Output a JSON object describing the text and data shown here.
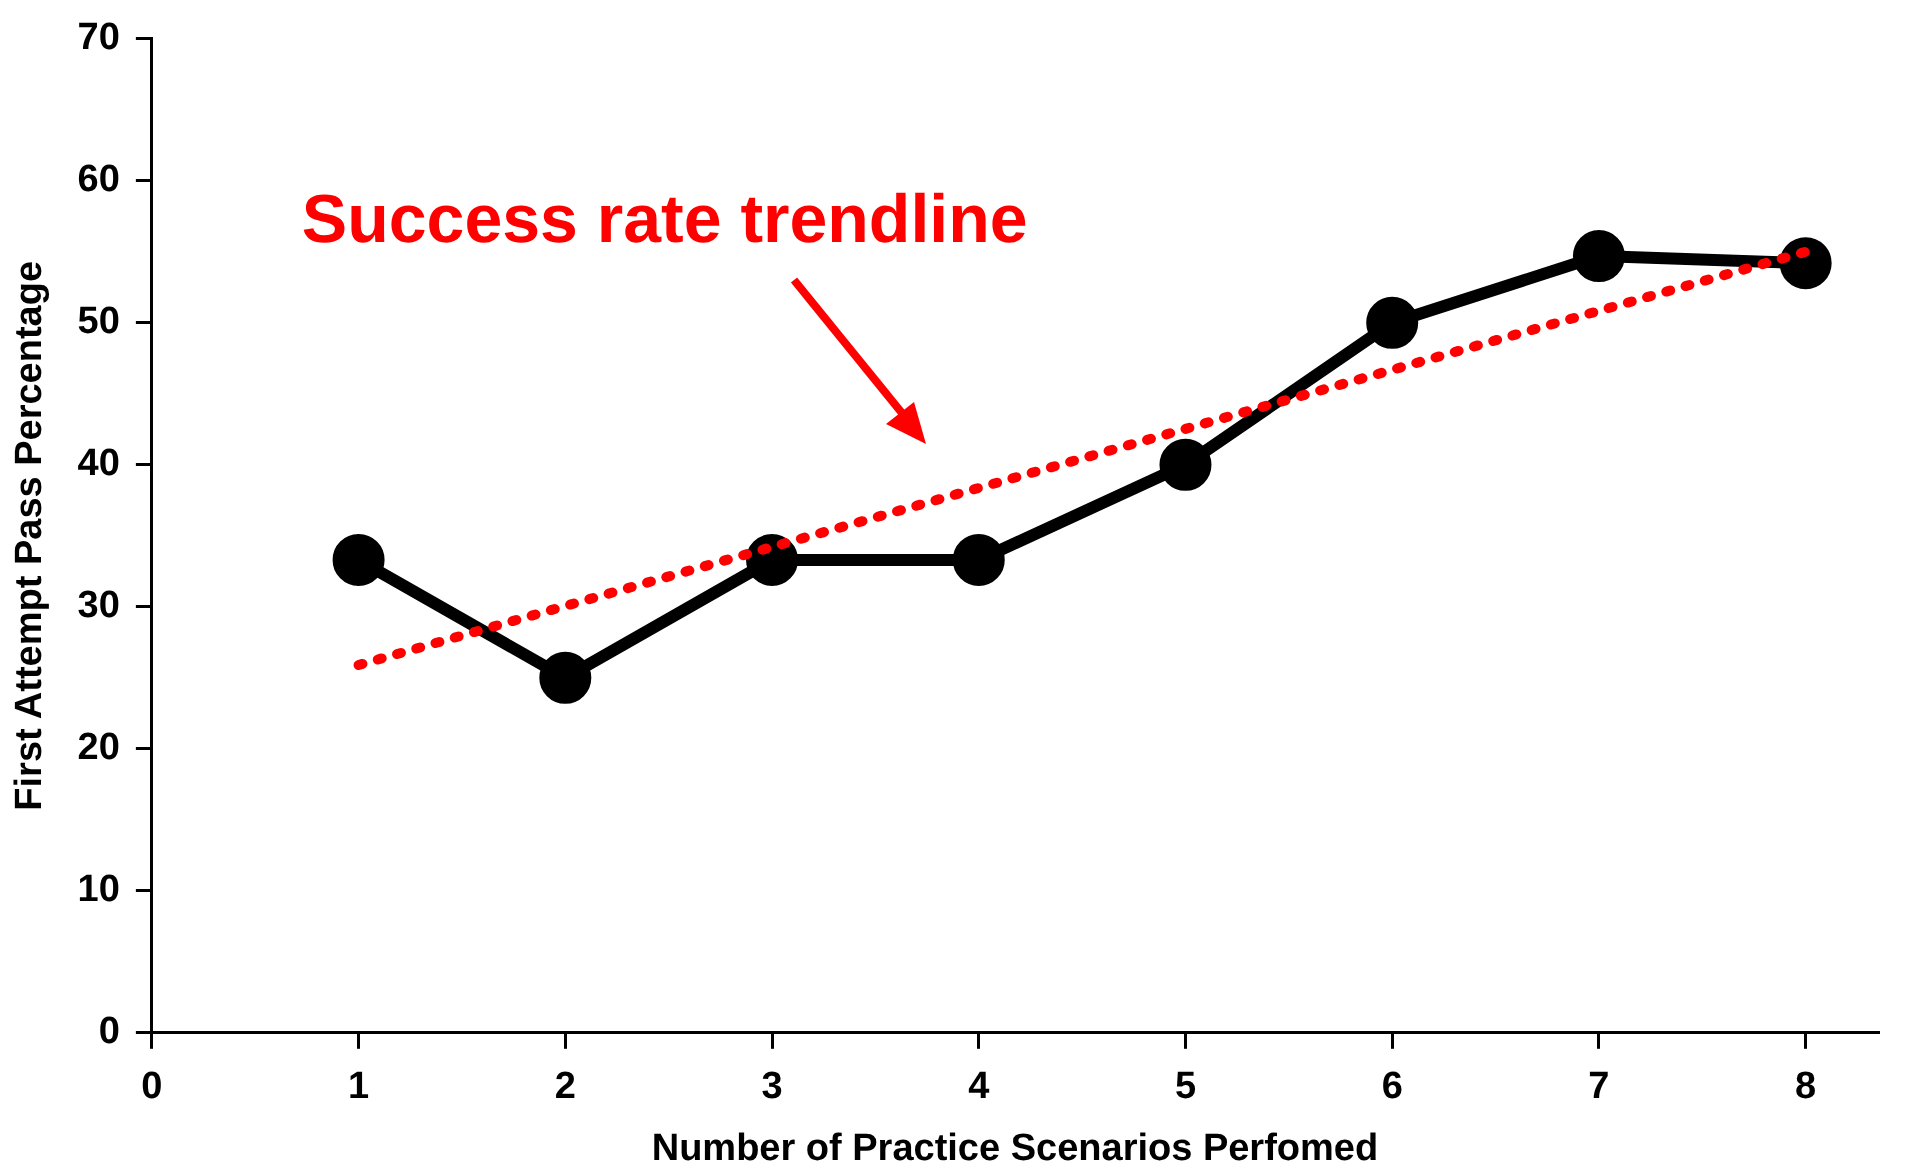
{
  "chart_data": {
    "type": "line",
    "xlabel": "Number of Practice Scenarios Perfomed",
    "ylabel": "First Attempt Pass Percentage",
    "x": [
      1,
      2,
      3,
      4,
      5,
      6,
      7,
      8
    ],
    "series": [
      {
        "values": [
          33.3,
          25,
          33.3,
          33.3,
          40,
          50,
          54.7,
          54.2
        ],
        "color": "#000000"
      },
      {
        "type": "line",
        "x": [
          1,
          8
        ],
        "values": [
          25.9,
          55
        ],
        "color": "#ff0000",
        "line_style": "dotted",
        "marker": "none"
      }
    ],
    "xlim": [
      0,
      8.35
    ],
    "xticks": [
      0,
      1,
      2,
      3,
      4,
      5,
      6,
      7,
      8
    ],
    "ylim": [
      0,
      70
    ],
    "yticks": [
      0,
      10,
      20,
      30,
      40,
      50,
      60,
      70
    ],
    "grid": false,
    "legend": false,
    "marker": "circle",
    "line_style": "solid",
    "annotations": [
      "Success rate trendline"
    ]
  }
}
